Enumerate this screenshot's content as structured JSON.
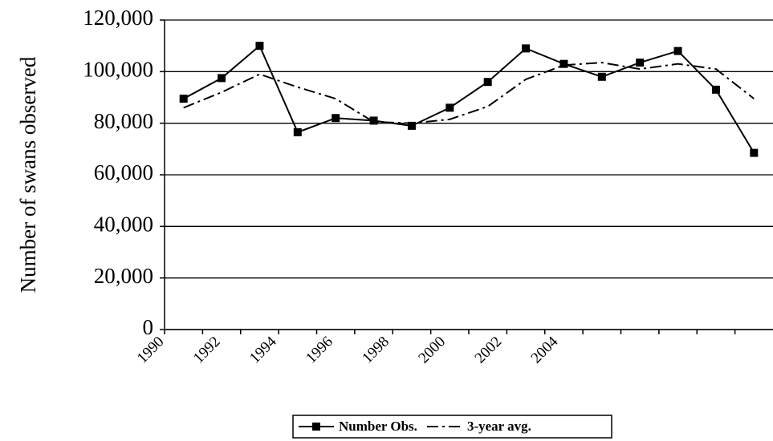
{
  "chart_data": {
    "type": "line",
    "y_label": "Number of swans observed",
    "categories": [
      "1990",
      null,
      "1992",
      null,
      "1994",
      null,
      "1996",
      null,
      "1998",
      null,
      "2000",
      null,
      "2002",
      null,
      "2004",
      null
    ],
    "series": [
      {
        "name": "Number Obs.",
        "color": "#000000",
        "line_style": "solid",
        "marker": "square",
        "values": [
          89500,
          97500,
          110000,
          76500,
          82000,
          81000,
          79000,
          86000,
          96000,
          109000,
          103000,
          98000,
          103500,
          108000,
          93000,
          68500
        ]
      },
      {
        "name": "3-year avg.",
        "color": "#000000",
        "line_style": "dash-dot",
        "marker": "none",
        "values": [
          86000,
          92000,
          99000,
          94000,
          89500,
          80500,
          80000,
          81500,
          86500,
          97000,
          102500,
          103500,
          101000,
          103000,
          101000,
          89500
        ]
      }
    ],
    "ylim": [
      0,
      120000
    ],
    "yticks": [
      0,
      {
        "value": 20000,
        "label": "20,000"
      },
      {
        "value": 40000,
        "label": "40,000"
      },
      {
        "value": 60000,
        "label": "60,000"
      },
      {
        "value": 80000,
        "label": "80,000"
      },
      {
        "value": 100000,
        "label": "100,000"
      },
      {
        "value": 120000,
        "label": "120,000"
      }
    ],
    "grid": true,
    "legend": "bottom"
  }
}
